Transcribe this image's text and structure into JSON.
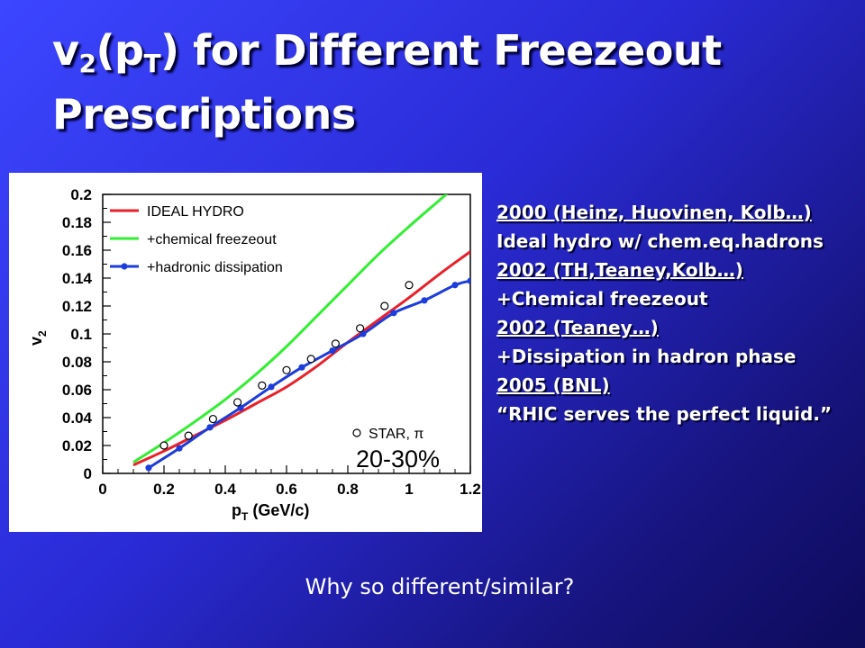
{
  "slide": {
    "title_v": "v",
    "title_v_sub": "2",
    "title_p": "(p",
    "title_p_sub": "T",
    "title_rest": ") for Different Freezeout",
    "title_line2": "Prescriptions",
    "question": "Why so different/similar?"
  },
  "notes": [
    {
      "text": "2000 (Heinz, Huovinen, Kolb…)",
      "underline": true
    },
    {
      "text": "Ideal hydro w/ chem.eq.hadrons",
      "underline": false
    },
    {
      "text": "2002 (TH,Teaney,Kolb…)",
      "underline": true
    },
    {
      "text": "+Chemical freezeout",
      "underline": false
    },
    {
      "text": "2002 (Teaney…)",
      "underline": true
    },
    {
      "text": "+Dissipation in hadron phase",
      "underline": false
    },
    {
      "text": "2005 (BNL)",
      "underline": true
    },
    {
      "text": "“RHIC serves the perfect liquid.”",
      "underline": false
    }
  ],
  "chart_data": {
    "type": "line",
    "xlabel_main": "p",
    "xlabel_sub": "T",
    "xlabel_rest": " (GeV/c)",
    "ylabel_main": "v",
    "ylabel_sub": "2",
    "xlim": [
      0,
      1.2
    ],
    "ylim": [
      0,
      0.2
    ],
    "x_ticks": [
      {
        "value": 0,
        "label": "0"
      },
      {
        "value": 0.2,
        "label": "0.2"
      },
      {
        "value": 0.4,
        "label": "0.4"
      },
      {
        "value": 0.6,
        "label": "0.6"
      },
      {
        "value": 0.8,
        "label": "0.8"
      },
      {
        "value": 1.0,
        "label": "1"
      },
      {
        "value": 1.2,
        "label": "1.2"
      }
    ],
    "y_ticks": [
      {
        "value": 0,
        "label": "0"
      },
      {
        "value": 0.02,
        "label": "0.02"
      },
      {
        "value": 0.04,
        "label": "0.04"
      },
      {
        "value": 0.06,
        "label": "0.06"
      },
      {
        "value": 0.08,
        "label": "0.08"
      },
      {
        "value": 0.1,
        "label": "0.1"
      },
      {
        "value": 0.12,
        "label": "0.12"
      },
      {
        "value": 0.14,
        "label": "0.14"
      },
      {
        "value": 0.16,
        "label": "0.16"
      },
      {
        "value": 0.18,
        "label": "0.18"
      },
      {
        "value": 0.2,
        "label": "0.2"
      }
    ],
    "annotation": "20-30%",
    "legend_position": "top-left",
    "series": [
      {
        "name": "IDEAL HYDRO",
        "color": "#e8202a",
        "style": "line",
        "x": [
          0.1,
          0.2,
          0.3,
          0.4,
          0.5,
          0.6,
          0.7,
          0.8,
          0.9,
          1.0,
          1.1,
          1.2
        ],
        "y": [
          0.006,
          0.016,
          0.027,
          0.038,
          0.05,
          0.062,
          0.077,
          0.094,
          0.11,
          0.126,
          0.143,
          0.159
        ]
      },
      {
        "name": "+chemical freezeout",
        "color": "#33ee33",
        "style": "line",
        "x": [
          0.1,
          0.2,
          0.3,
          0.4,
          0.5,
          0.6,
          0.7,
          0.8,
          0.9,
          1.0,
          1.1,
          1.2
        ],
        "y": [
          0.008,
          0.022,
          0.037,
          0.053,
          0.071,
          0.091,
          0.113,
          0.135,
          0.157,
          0.177,
          0.196,
          0.215
        ]
      },
      {
        "name": "+hadronic dissipation",
        "color": "#1c3cdc",
        "style": "line-marker",
        "x": [
          0.15,
          0.25,
          0.35,
          0.45,
          0.55,
          0.65,
          0.75,
          0.85,
          0.95,
          1.05,
          1.15,
          1.2
        ],
        "y": [
          0.004,
          0.018,
          0.033,
          0.047,
          0.062,
          0.076,
          0.088,
          0.1,
          0.115,
          0.124,
          0.135,
          0.138
        ]
      },
      {
        "name": "STAR, π",
        "color": "#000000",
        "style": "open-marker",
        "x": [
          0.2,
          0.28,
          0.36,
          0.44,
          0.52,
          0.6,
          0.68,
          0.76,
          0.84,
          0.92,
          1.0
        ],
        "y": [
          0.02,
          0.027,
          0.039,
          0.051,
          0.063,
          0.074,
          0.082,
          0.093,
          0.104,
          0.12,
          0.135
        ]
      }
    ]
  }
}
